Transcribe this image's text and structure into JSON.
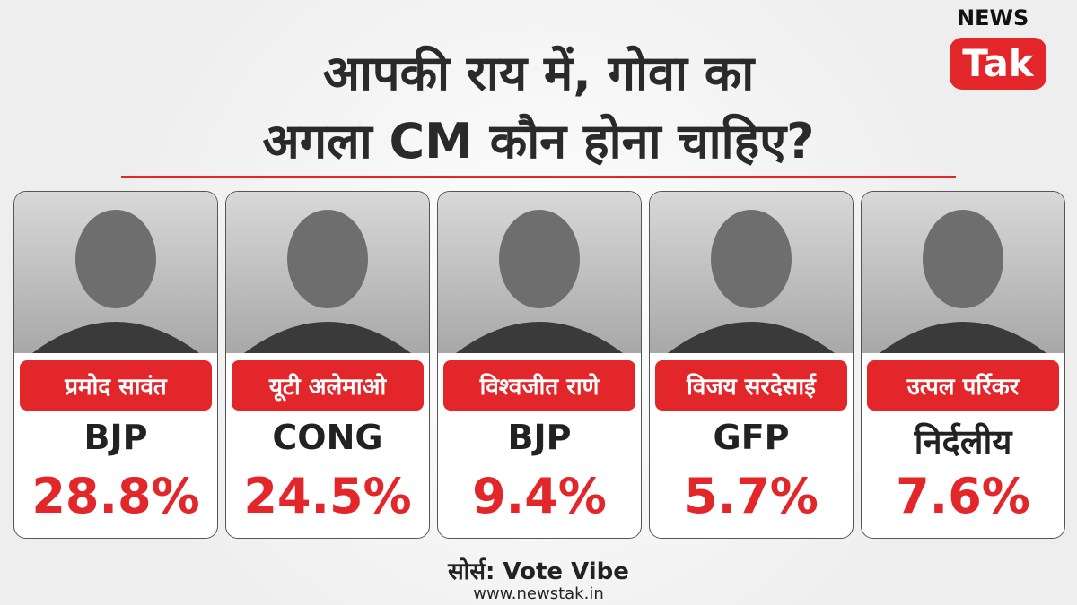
{
  "header": {
    "title_lines": [
      "आपकी राय में, गोवा का",
      "अगला CM कौन होना चाहिए?"
    ]
  },
  "logo": {
    "top": "NEWS",
    "bottom": "Tak"
  },
  "cards": [
    {
      "name": "प्रमोद सावंत",
      "party": "BJP",
      "share": "28.8%"
    },
    {
      "name": "यूटी अलेमाओ",
      "party": "CONG",
      "share": "24.5%"
    },
    {
      "name": "विश्वजीत राणे",
      "party": "BJP",
      "share": "9.4%"
    },
    {
      "name": "विजय सरदेसाई",
      "party": "GFP",
      "share": "5.7%"
    },
    {
      "name": "उत्पल पर्रिकर",
      "party": "निर्दलीय",
      "share": "7.6%"
    }
  ],
  "footer": {
    "source": "सोर्स: Vote Vibe",
    "website": "www.newstak.in"
  }
}
